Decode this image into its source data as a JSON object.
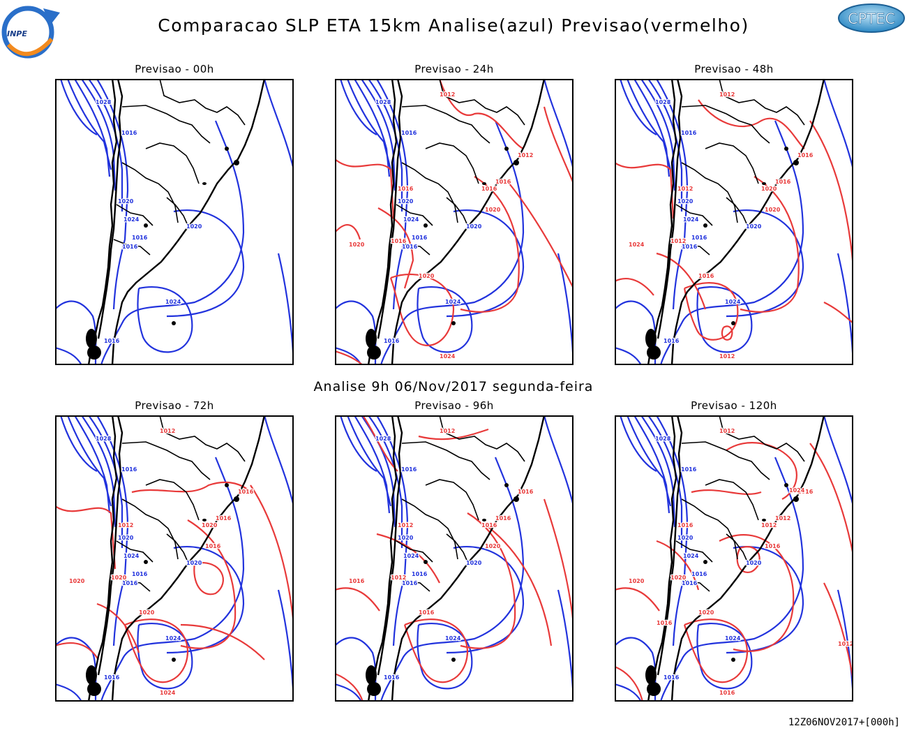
{
  "header": {
    "title": "Comparacao SLP ETA 15km Analise(azul) Previsao(vermelho)",
    "left_logo": {
      "name": "inpe-logo",
      "text": "INPE"
    },
    "right_logo": {
      "name": "cptec-logo",
      "text": "CPTEC"
    }
  },
  "analysis_label": "Analise 9h 06/Nov/2017 segunda-feira",
  "footer_stamp": "12Z06NOV2017+[000h]",
  "colors": {
    "analysis": "#2233dd",
    "forecast": "#e83a3a",
    "coast": "#000000",
    "background": "#ffffff"
  },
  "legend": {
    "analysis": "azul",
    "forecast": "vermelho"
  },
  "isobar_units": "hPa",
  "panels": [
    {
      "id": "p00",
      "title": "Previsao - 00h",
      "analysis_labels": [
        "1028",
        "1016",
        "1020",
        "1024",
        "1016",
        "1020",
        "1016",
        "1024",
        "1016"
      ],
      "forecast_labels": []
    },
    {
      "id": "p24",
      "title": "Previsao - 24h",
      "analysis_labels": [
        "1028",
        "1016",
        "1020",
        "1024",
        "1016",
        "1020",
        "1016",
        "1024",
        "1016"
      ],
      "forecast_labels": [
        "1012",
        "1016",
        "1012",
        "1016",
        "1016",
        "1020",
        "1020",
        "1020",
        "1016",
        "1024"
      ]
    },
    {
      "id": "p48",
      "title": "Previsao - 48h",
      "analysis_labels": [
        "1028",
        "1016",
        "1020",
        "1024",
        "1016",
        "1020",
        "1016",
        "1024",
        "1016"
      ],
      "forecast_labels": [
        "1012",
        "1012",
        "1016",
        "1016",
        "1020",
        "1020",
        "1016",
        "1024",
        "1012",
        "1012"
      ]
    },
    {
      "id": "p72",
      "title": "Previsao - 72h",
      "analysis_labels": [
        "1028",
        "1016",
        "1020",
        "1024",
        "1016",
        "1020",
        "1016",
        "1024",
        "1016"
      ],
      "forecast_labels": [
        "1012",
        "1012",
        "1016",
        "1016",
        "1020",
        "1016",
        "1020",
        "1020",
        "1020",
        "1024"
      ]
    },
    {
      "id": "p96",
      "title": "Previsao - 96h",
      "analysis_labels": [
        "1028",
        "1016",
        "1020",
        "1024",
        "1016",
        "1020",
        "1016",
        "1024",
        "1016"
      ],
      "forecast_labels": [
        "1012",
        "1012",
        "1016",
        "1016",
        "1016",
        "1020",
        "1016",
        "1016",
        "1012"
      ]
    },
    {
      "id": "p120",
      "title": "Previsao - 120h",
      "analysis_labels": [
        "1028",
        "1016",
        "1020",
        "1024",
        "1016",
        "1020",
        "1016",
        "1024",
        "1016"
      ],
      "forecast_labels": [
        "1012",
        "1016",
        "1016",
        "1012",
        "1012",
        "1016",
        "1020",
        "1020",
        "1020",
        "1016",
        "1016",
        "1012",
        "1024"
      ]
    }
  ]
}
